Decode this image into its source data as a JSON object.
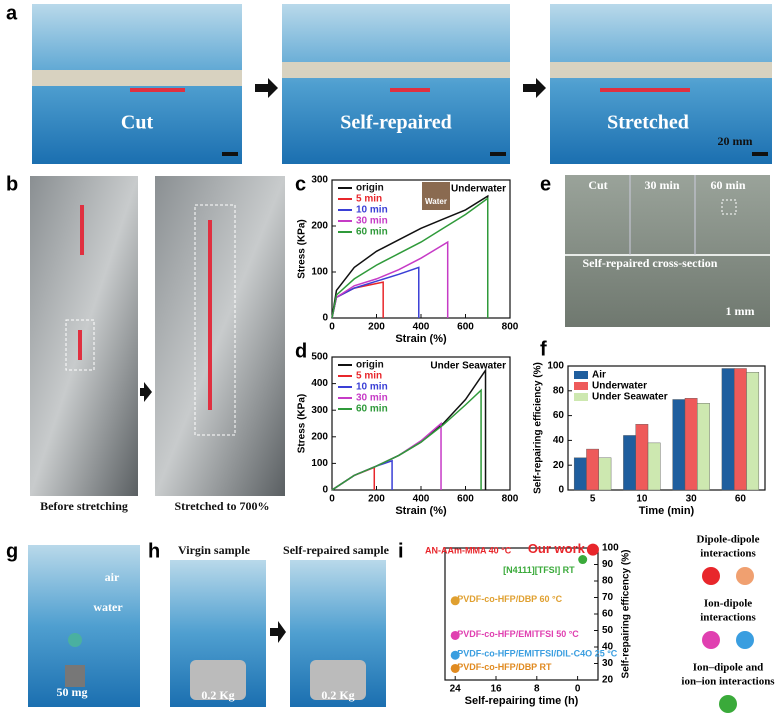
{
  "panel_labels": [
    "a",
    "b",
    "c",
    "d",
    "e",
    "f",
    "g",
    "h",
    "i"
  ],
  "photos": {
    "a": [
      "Cut",
      "Self-repaired",
      "Stretched",
      "20 mm"
    ],
    "b": [
      "Before stretching",
      "Stretched to 700%"
    ],
    "e": [
      "Cut",
      "30 min",
      "60 min",
      "Self-repaired cross-section",
      "1 mm"
    ],
    "g": [
      "air",
      "water",
      "50 mg"
    ],
    "h": [
      "Virgin sample",
      "Self-repaired sample",
      "0.2 Kg",
      "0.2 Kg"
    ]
  },
  "chart_data": [
    {
      "type": "line",
      "subtitle": "Underwater",
      "inset_label": "Water",
      "xlabel": "Strain (%)",
      "ylabel": "Stress (KPa)",
      "xlim": [
        0,
        800
      ],
      "xticks": [
        0,
        200,
        400,
        600,
        800
      ],
      "ylim": [
        0,
        300
      ],
      "yticks": [
        0,
        100,
        200,
        300
      ],
      "series": [
        {
          "name": "origin",
          "color": "#111111",
          "x": [
            0,
            20,
            100,
            200,
            300,
            400,
            500,
            600,
            700,
            700
          ],
          "values": [
            0,
            60,
            110,
            145,
            170,
            195,
            215,
            235,
            265,
            0
          ]
        },
        {
          "name": "5 min",
          "color": "#e8262b",
          "x": [
            0,
            20,
            100,
            200,
            230,
            230
          ],
          "values": [
            0,
            45,
            65,
            75,
            78,
            0
          ]
        },
        {
          "name": "10 min",
          "color": "#3a3fd6",
          "x": [
            0,
            20,
            100,
            200,
            300,
            390,
            390
          ],
          "values": [
            0,
            45,
            65,
            80,
            95,
            110,
            0
          ]
        },
        {
          "name": "30 min",
          "color": "#c63bc6",
          "x": [
            0,
            20,
            100,
            200,
            300,
            400,
            520,
            520
          ],
          "values": [
            0,
            45,
            70,
            85,
            105,
            130,
            165,
            0
          ]
        },
        {
          "name": "60 min",
          "color": "#2f9a3a",
          "x": [
            0,
            20,
            100,
            200,
            300,
            400,
            500,
            600,
            700,
            700
          ],
          "values": [
            0,
            50,
            85,
            115,
            140,
            165,
            195,
            225,
            260,
            0
          ]
        }
      ]
    },
    {
      "type": "line",
      "subtitle": "Under Seawater",
      "xlabel": "Strain (%)",
      "ylabel": "Stress (KPa)",
      "xlim": [
        0,
        800
      ],
      "xticks": [
        0,
        200,
        400,
        600,
        800
      ],
      "ylim": [
        0,
        500
      ],
      "yticks": [
        0,
        100,
        200,
        300,
        400,
        500
      ],
      "series": [
        {
          "name": "origin",
          "color": "#111111",
          "x": [
            0,
            100,
            200,
            300,
            400,
            500,
            600,
            690,
            690
          ],
          "values": [
            0,
            55,
            90,
            130,
            180,
            250,
            340,
            450,
            0
          ]
        },
        {
          "name": "5 min",
          "color": "#e8262b",
          "x": [
            0,
            100,
            190,
            190
          ],
          "values": [
            0,
            55,
            85,
            0
          ]
        },
        {
          "name": "10 min",
          "color": "#3a3fd6",
          "x": [
            0,
            100,
            200,
            270,
            270
          ],
          "values": [
            0,
            55,
            90,
            110,
            0
          ]
        },
        {
          "name": "30 min",
          "color": "#c63bc6",
          "x": [
            0,
            100,
            200,
            300,
            400,
            490,
            490
          ],
          "values": [
            0,
            55,
            90,
            130,
            185,
            250,
            0
          ]
        },
        {
          "name": "60 min",
          "color": "#2f9a3a",
          "x": [
            0,
            100,
            200,
            300,
            400,
            500,
            600,
            670,
            670
          ],
          "values": [
            0,
            55,
            90,
            130,
            180,
            245,
            320,
            375,
            0
          ]
        }
      ]
    },
    {
      "type": "bar",
      "xlabel": "Time (min)",
      "ylabel": "Self-repairing efficiency (%)",
      "categories": [
        "5",
        "10",
        "30",
        "60"
      ],
      "ylim": [
        0,
        100
      ],
      "yticks": [
        0,
        20,
        40,
        60,
        80,
        100
      ],
      "series": [
        {
          "name": "Air",
          "color": "#1f5e9e",
          "values": [
            26,
            44,
            73,
            98
          ]
        },
        {
          "name": "Underwater",
          "color": "#ee5a5a",
          "values": [
            33,
            53,
            74,
            98
          ]
        },
        {
          "name": "Under Seawater",
          "color": "#cde8b0",
          "values": [
            26,
            38,
            70,
            95
          ]
        }
      ]
    },
    {
      "type": "scatter",
      "xlabel": "Self-repairing time (h)",
      "ylabel": "Self-repairing efficency (%)",
      "annotation": "AN-AAm-MMA 40 °C",
      "xlim": [
        26,
        -4
      ],
      "xticks": [
        24,
        16,
        8,
        0
      ],
      "ylim": [
        20,
        100
      ],
      "yticks": [
        20,
        30,
        40,
        50,
        60,
        70,
        80,
        90,
        100
      ],
      "series": [
        {
          "name": "Our work",
          "color": "#e8262b",
          "x": [
            -3
          ],
          "values": [
            99
          ]
        },
        {
          "name": "[N4111][TFSI] RT",
          "color": "#3aaa3a",
          "x": [
            -1
          ],
          "values": [
            93
          ]
        },
        {
          "name": "PVDF-co-HFP/DBP 60 °C",
          "color": "#e0a030",
          "x": [
            24
          ],
          "values": [
            68
          ]
        },
        {
          "name": "PVDF-co-HFP/EMITFSI 50 °C",
          "color": "#e040b0",
          "x": [
            24
          ],
          "values": [
            47
          ]
        },
        {
          "name": "PVDF-co-HFP/EMITFSI/DIL-C4O 25 °C",
          "color": "#3a9ee0",
          "x": [
            24
          ],
          "values": [
            35
          ]
        },
        {
          "name": "PVDF-co-HFP/DBP RT",
          "color": "#e08a20",
          "x": [
            24
          ],
          "values": [
            27
          ]
        }
      ],
      "legend_groups": [
        {
          "lines": [
            "Dipole-dipole",
            "interactions"
          ],
          "colors": [
            "#e8262b",
            "#f0a070"
          ]
        },
        {
          "lines": [
            "Ion-dipole",
            "interactions"
          ],
          "colors": [
            "#e040b0",
            "#3a9ee0"
          ]
        },
        {
          "lines": [
            "Ion–dipole and",
            "ion–ion interactions"
          ],
          "colors": [
            "#3aaa3a"
          ]
        }
      ]
    }
  ]
}
